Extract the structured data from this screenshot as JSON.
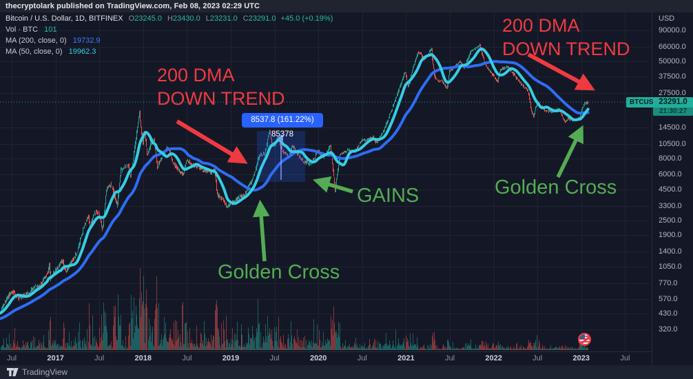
{
  "publish_bar": {
    "text": "thecryptolark published on TradingView.com, Feb 08, 2023 02:29 UTC"
  },
  "legend": {
    "symbol": "Bitcoin / U.S. Dollar, 1D, BITFINEX",
    "o_label": "O",
    "o_value": "23245.0",
    "h_label": "H",
    "h_value": "23430.0",
    "l_label": "L",
    "l_value": "23231.0",
    "c_label": "C",
    "c_value": "23291.0",
    "change": "+45.0 (+0.19%)",
    "vol_label": "Vol · BTC",
    "vol_value": "101",
    "ma200_label": "MA (200, close, 0)",
    "ma200_value": "19732.9",
    "ma50_label": "MA (50, close, 0)",
    "ma50_value": "19962.3"
  },
  "annotations": {
    "dma_left_line1": "200 DMA",
    "dma_left_line2": "DOWN TREND",
    "dma_right_line1": "200 DMA",
    "dma_right_line2": "DOWN TREND",
    "gains": "GAINS",
    "golden_cross_left": "Golden Cross",
    "golden_cross_right": "Golden Cross",
    "measure_tooltip": "8537.8 (161.22%) 85378"
  },
  "price_axis": {
    "currency": "USD",
    "symbol_badge": "BTCUSD",
    "last_price": "23291.0",
    "countdown": "21:30:27",
    "ticks": [
      {
        "p": 90000,
        "label": "90000.0"
      },
      {
        "p": 66000,
        "label": "66000.0"
      },
      {
        "p": 50000,
        "label": "50000.0"
      },
      {
        "p": 37500,
        "label": "37500.0"
      },
      {
        "p": 27500,
        "label": "27500.0"
      },
      {
        "p": 14500,
        "label": "14500.0"
      },
      {
        "p": 10500,
        "label": "10500.0"
      },
      {
        "p": 8000,
        "label": "8000.0"
      },
      {
        "p": 6000,
        "label": "6000.0"
      },
      {
        "p": 4500,
        "label": "4500.0"
      },
      {
        "p": 3300,
        "label": "3300.0"
      },
      {
        "p": 2500,
        "label": "2500.0"
      },
      {
        "p": 1900,
        "label": "1900.0"
      },
      {
        "p": 1400,
        "label": "1400.0"
      },
      {
        "p": 1050,
        "label": "1050.0"
      },
      {
        "p": 770,
        "label": "770.0"
      },
      {
        "p": 570,
        "label": "570.0"
      },
      {
        "p": 430,
        "label": "430.0"
      },
      {
        "p": 320,
        "label": "320.0"
      }
    ]
  },
  "time_axis": {
    "labels": [
      {
        "m": 0,
        "text": "Jul",
        "year": false
      },
      {
        "m": 6,
        "text": "2017",
        "year": true
      },
      {
        "m": 12,
        "text": "Jul",
        "year": false
      },
      {
        "m": 18,
        "text": "2018",
        "year": true
      },
      {
        "m": 24,
        "text": "Jul",
        "year": false
      },
      {
        "m": 30,
        "text": "2019",
        "year": true
      },
      {
        "m": 36,
        "text": "Jul",
        "year": false
      },
      {
        "m": 42,
        "text": "2020",
        "year": true
      },
      {
        "m": 48,
        "text": "Jul",
        "year": false
      },
      {
        "m": 54,
        "text": "2021",
        "year": true
      },
      {
        "m": 60,
        "text": "Jul",
        "year": false
      },
      {
        "m": 66,
        "text": "2022",
        "year": true
      },
      {
        "m": 72,
        "text": "Jul",
        "year": false
      },
      {
        "m": 78,
        "text": "2023",
        "year": true
      },
      {
        "m": 84,
        "text": "Jul",
        "year": false
      }
    ]
  },
  "footer": {
    "brand": "TradingView"
  },
  "colors": {
    "background": "#141826",
    "publish_bar_bg": "#20242f",
    "up": "#26a69a",
    "down": "#ef5350",
    "ma50": "#36cde4",
    "ma200": "#2e6df5",
    "accent_teal": "#22ad9c",
    "red_annotation": "#ef3a42",
    "green_annotation": "#54ac54",
    "tooltip_bg": "#2962ff",
    "measure_fill": "rgba(41,98,255,0.22)",
    "grid": "rgba(255,255,255,0.055)",
    "axis_text": "#b4b7c0"
  },
  "chart_data": {
    "type": "candlestick",
    "symbol": "Bitcoin / U.S. Dollar",
    "exchange": "BITFINEX",
    "interval": "1D",
    "price_scale": "logarithmic",
    "x_range": [
      "May 2016",
      "Jul 2023"
    ],
    "y_range_usd": [
      320,
      90000
    ],
    "last_bar": {
      "open": 23245.0,
      "high": 23430.0,
      "low": 23231.0,
      "close": 23291.0,
      "change": 45.0,
      "change_pct": 0.19,
      "volume_btc": 101
    },
    "indicators": [
      {
        "name": "MA",
        "length": 200,
        "source": "close",
        "offset": 0,
        "last_value": 19732.9,
        "color": "#2e6df5"
      },
      {
        "name": "MA",
        "length": 50,
        "source": "close",
        "offset": 0,
        "last_value": 19962.3,
        "color": "#36cde4"
      }
    ],
    "measured_move": {
      "change_usd": 8537.8,
      "change_pct": 161.22,
      "label": "8537.8 (161.22%) 85378",
      "span": "Apr 2019 - Nov 2019"
    },
    "events": [
      "Golden Cross Apr 2019",
      "Golden Cross Feb 2023",
      "200 DMA down trend 2018",
      "200 DMA down trend 2022"
    ],
    "price_path_months_from_jul2016": [
      [
        -8.3,
        350
      ],
      [
        -4,
        395
      ],
      [
        -1.6,
        455
      ],
      [
        0,
        660
      ],
      [
        1,
        580
      ],
      [
        2,
        612
      ],
      [
        3,
        700
      ],
      [
        4,
        745
      ],
      [
        5,
        963
      ],
      [
        5.15,
        1130
      ],
      [
        5.35,
        790
      ],
      [
        6,
        965
      ],
      [
        7,
        1190
      ],
      [
        7.5,
        945
      ],
      [
        8,
        1080
      ],
      [
        9,
        1350
      ],
      [
        10,
        2300
      ],
      [
        10.55,
        2760
      ],
      [
        10.8,
        2190
      ],
      [
        11,
        2450
      ],
      [
        11.5,
        2950
      ],
      [
        12,
        2870
      ],
      [
        12.5,
        2060
      ],
      [
        13,
        4350
      ],
      [
        13.6,
        4950
      ],
      [
        14,
        4340
      ],
      [
        14.5,
        3250
      ],
      [
        15,
        6450
      ],
      [
        16,
        7300
      ],
      [
        16.3,
        5600
      ],
      [
        17,
        11000
      ],
      [
        17.55,
        19350
      ],
      [
        17.8,
        13500
      ],
      [
        18,
        10200
      ],
      [
        18.25,
        14300
      ],
      [
        18.6,
        8300
      ],
      [
        19,
        10300
      ],
      [
        19.5,
        11600
      ],
      [
        20,
        6900
      ],
      [
        21,
        9250
      ],
      [
        21.5,
        9900
      ],
      [
        22,
        7500
      ],
      [
        23,
        6400
      ],
      [
        23.5,
        5900
      ],
      [
        24,
        7750
      ],
      [
        25,
        7030
      ],
      [
        26,
        6600
      ],
      [
        27,
        6300
      ],
      [
        27.8,
        6350
      ],
      [
        28.2,
        4020
      ],
      [
        29,
        3740
      ],
      [
        29.5,
        3200
      ],
      [
        30,
        3430
      ],
      [
        31,
        3820
      ],
      [
        32,
        4100
      ],
      [
        33,
        5270
      ],
      [
        34,
        8560
      ],
      [
        34.8,
        9000
      ],
      [
        35.4,
        13600
      ],
      [
        35.7,
        10500
      ],
      [
        36,
        10080
      ],
      [
        36.5,
        11900
      ],
      [
        37,
        9600
      ],
      [
        38,
        8300
      ],
      [
        38.5,
        10300
      ],
      [
        39,
        9150
      ],
      [
        40,
        7550
      ],
      [
        41,
        7190
      ],
      [
        42,
        9350
      ],
      [
        42.5,
        8350
      ],
      [
        43,
        8550
      ],
      [
        43.7,
        10350
      ],
      [
        44.35,
        4350
      ],
      [
        44.6,
        5900
      ],
      [
        45,
        8620
      ],
      [
        46,
        9450
      ],
      [
        47,
        9140
      ],
      [
        48,
        11350
      ],
      [
        49,
        11650
      ],
      [
        49.5,
        12050
      ],
      [
        50,
        10780
      ],
      [
        51,
        13800
      ],
      [
        52,
        19700
      ],
      [
        53,
        29000
      ],
      [
        53.9,
        41800
      ],
      [
        54.3,
        30500
      ],
      [
        55,
        45200
      ],
      [
        55.6,
        58100
      ],
      [
        56,
        58800
      ],
      [
        56.5,
        51500
      ],
      [
        57,
        57700
      ],
      [
        57.5,
        64400
      ],
      [
        58,
        37300
      ],
      [
        58.6,
        34000
      ],
      [
        59,
        35000
      ],
      [
        59.7,
        29500
      ],
      [
        60,
        41500
      ],
      [
        61,
        47100
      ],
      [
        61.5,
        50100
      ],
      [
        62,
        43800
      ],
      [
        63,
        61300
      ],
      [
        64.15,
        68200
      ],
      [
        64.5,
        56500
      ],
      [
        65,
        46200
      ],
      [
        66,
        38500
      ],
      [
        66.6,
        33900
      ],
      [
        67,
        43200
      ],
      [
        68,
        45500
      ],
      [
        69,
        37700
      ],
      [
        70,
        31800
      ],
      [
        70.8,
        28500
      ],
      [
        71.2,
        19900
      ],
      [
        71.5,
        17800
      ],
      [
        72,
        23300
      ],
      [
        73,
        20050
      ],
      [
        74,
        19400
      ],
      [
        75,
        20500
      ],
      [
        75.8,
        15800
      ],
      [
        76.2,
        17160
      ],
      [
        77,
        16550
      ],
      [
        77.8,
        17100
      ],
      [
        78.2,
        21150
      ],
      [
        78.6,
        23000
      ],
      [
        79,
        23100
      ],
      [
        79.27,
        23291
      ]
    ]
  }
}
